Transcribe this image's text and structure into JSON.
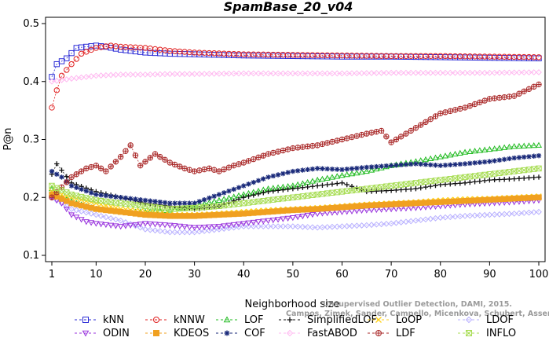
{
  "chart_data": {
    "type": "line",
    "title": "SpamBase_20_v04",
    "xlabel": "Neighborhood size",
    "ylabel": "P@n",
    "xlim": [
      1,
      100
    ],
    "ylim": [
      0.1,
      0.5
    ],
    "xticks": [
      1,
      10,
      20,
      30,
      40,
      50,
      60,
      70,
      80,
      90,
      100
    ],
    "yticks": [
      0.1,
      0.2,
      0.3,
      0.4,
      0.5
    ],
    "grid": false,
    "legend_position": "bottom",
    "credit_lines": [
      "Unsupervised Outlier Detection, DAMI, 2015.",
      "Campos, Zimek, Sander, Campello, Micenkova, Schubert, Assent, Houle"
    ],
    "series": [
      {
        "name": "kNN",
        "color": "#2b2bd6",
        "marker": "square",
        "x": [
          1,
          2,
          4,
          6,
          8,
          10,
          12,
          15,
          20,
          25,
          30,
          40,
          50,
          60,
          70,
          80,
          90,
          100
        ],
        "y": [
          0.408,
          0.43,
          0.44,
          0.458,
          0.46,
          0.462,
          0.46,
          0.455,
          0.45,
          0.448,
          0.447,
          0.445,
          0.444,
          0.443,
          0.443,
          0.442,
          0.441,
          0.44
        ]
      },
      {
        "name": "kNNW",
        "color": "#e02020",
        "marker": "circle",
        "x": [
          1,
          2,
          3,
          5,
          7,
          10,
          13,
          15,
          20,
          25,
          30,
          40,
          50,
          60,
          70,
          80,
          90,
          100
        ],
        "y": [
          0.355,
          0.385,
          0.41,
          0.43,
          0.448,
          0.458,
          0.462,
          0.46,
          0.458,
          0.453,
          0.45,
          0.447,
          0.446,
          0.445,
          0.444,
          0.444,
          0.443,
          0.442
        ]
      },
      {
        "name": "LOF",
        "color": "#22bb22",
        "marker": "triangle-up",
        "x": [
          1,
          3,
          6,
          10,
          15,
          20,
          25,
          30,
          35,
          40,
          45,
          50,
          55,
          60,
          65,
          70,
          75,
          80,
          85,
          90,
          95,
          100
        ],
        "y": [
          0.215,
          0.2,
          0.19,
          0.18,
          0.175,
          0.175,
          0.178,
          0.185,
          0.195,
          0.205,
          0.215,
          0.22,
          0.23,
          0.238,
          0.245,
          0.255,
          0.262,
          0.27,
          0.278,
          0.283,
          0.288,
          0.29
        ]
      },
      {
        "name": "SimplifiedLOF",
        "color": "#111111",
        "marker": "plus",
        "x": [
          1,
          2,
          5,
          10,
          15,
          20,
          25,
          30,
          35,
          40,
          45,
          50,
          55,
          60,
          65,
          70,
          75,
          80,
          85,
          90,
          95,
          100
        ],
        "y": [
          0.24,
          0.258,
          0.225,
          0.21,
          0.2,
          0.19,
          0.185,
          0.18,
          0.185,
          0.2,
          0.21,
          0.215,
          0.22,
          0.225,
          0.21,
          0.212,
          0.215,
          0.222,
          0.225,
          0.23,
          0.232,
          0.235
        ]
      },
      {
        "name": "LoOP",
        "color": "#ffd21a",
        "marker": "x",
        "x": [
          1,
          5,
          10,
          15,
          20,
          25,
          30,
          35,
          40,
          45,
          50,
          55,
          60,
          65,
          70,
          75,
          80,
          85,
          90,
          95,
          100
        ],
        "y": [
          0.21,
          0.2,
          0.19,
          0.18,
          0.175,
          0.17,
          0.17,
          0.172,
          0.175,
          0.178,
          0.18,
          0.182,
          0.185,
          0.188,
          0.19,
          0.192,
          0.195,
          0.197,
          0.198,
          0.2,
          0.202
        ]
      },
      {
        "name": "LDOF",
        "color": "#b8b0ff",
        "marker": "diamond",
        "x": [
          1,
          5,
          10,
          15,
          20,
          25,
          30,
          35,
          40,
          45,
          50,
          55,
          60,
          65,
          70,
          75,
          80,
          85,
          90,
          95,
          100
        ],
        "y": [
          0.2,
          0.18,
          0.17,
          0.16,
          0.145,
          0.14,
          0.14,
          0.145,
          0.15,
          0.15,
          0.15,
          0.148,
          0.15,
          0.152,
          0.155,
          0.16,
          0.165,
          0.168,
          0.17,
          0.172,
          0.175
        ]
      },
      {
        "name": "ODIN",
        "color": "#9933dd",
        "marker": "triangle-down",
        "x": [
          1,
          3,
          5,
          8,
          10,
          15,
          20,
          25,
          30,
          35,
          40,
          45,
          50,
          55,
          60,
          65,
          70,
          75,
          80,
          85,
          90,
          95,
          100
        ],
        "y": [
          0.2,
          0.19,
          0.17,
          0.158,
          0.155,
          0.15,
          0.155,
          0.152,
          0.148,
          0.15,
          0.155,
          0.16,
          0.165,
          0.172,
          0.175,
          0.178,
          0.18,
          0.182,
          0.185,
          0.188,
          0.19,
          0.192,
          0.195
        ]
      },
      {
        "name": "KDEOS",
        "color": "#f0a020",
        "marker": "filled-square",
        "x": [
          1,
          5,
          10,
          15,
          20,
          25,
          30,
          35,
          40,
          45,
          50,
          55,
          60,
          65,
          70,
          75,
          80,
          85,
          90,
          95,
          100
        ],
        "y": [
          0.205,
          0.19,
          0.18,
          0.175,
          0.17,
          0.168,
          0.168,
          0.17,
          0.172,
          0.175,
          0.178,
          0.18,
          0.183,
          0.186,
          0.188,
          0.19,
          0.192,
          0.194,
          0.196,
          0.198,
          0.2
        ]
      },
      {
        "name": "COF",
        "color": "#1a2a7a",
        "marker": "asterisk",
        "x": [
          1,
          3,
          5,
          10,
          15,
          20,
          25,
          30,
          35,
          40,
          45,
          50,
          55,
          60,
          65,
          70,
          75,
          80,
          85,
          90,
          95,
          100
        ],
        "y": [
          0.245,
          0.235,
          0.22,
          0.205,
          0.2,
          0.195,
          0.19,
          0.19,
          0.205,
          0.22,
          0.235,
          0.245,
          0.25,
          0.248,
          0.252,
          0.255,
          0.258,
          0.255,
          0.258,
          0.262,
          0.268,
          0.272
        ]
      },
      {
        "name": "FastABOD",
        "color": "#ffb8f0",
        "marker": "diamond",
        "x": [
          1,
          5,
          10,
          15,
          20,
          25,
          30,
          40,
          50,
          60,
          70,
          80,
          90,
          100
        ],
        "y": [
          0.4,
          0.405,
          0.41,
          0.412,
          0.412,
          0.413,
          0.413,
          0.414,
          0.414,
          0.414,
          0.415,
          0.415,
          0.415,
          0.416
        ]
      },
      {
        "name": "LDF",
        "color": "#aa2a2a",
        "marker": "circle-plus",
        "x": [
          1,
          5,
          8,
          10,
          12,
          15,
          17,
          19,
          22,
          25,
          28,
          30,
          33,
          35,
          38,
          40,
          45,
          50,
          55,
          60,
          65,
          68,
          70,
          75,
          80,
          85,
          90,
          95,
          100
        ],
        "y": [
          0.2,
          0.235,
          0.25,
          0.255,
          0.245,
          0.27,
          0.29,
          0.255,
          0.275,
          0.26,
          0.25,
          0.245,
          0.25,
          0.245,
          0.255,
          0.26,
          0.275,
          0.285,
          0.29,
          0.3,
          0.31,
          0.315,
          0.295,
          0.32,
          0.345,
          0.355,
          0.37,
          0.375,
          0.395
        ]
      },
      {
        "name": "INFLO",
        "color": "#a8dd55",
        "marker": "square-x",
        "x": [
          1,
          5,
          10,
          15,
          20,
          25,
          30,
          35,
          40,
          45,
          50,
          55,
          60,
          65,
          70,
          75,
          80,
          85,
          90,
          95,
          100
        ],
        "y": [
          0.22,
          0.205,
          0.195,
          0.19,
          0.185,
          0.18,
          0.182,
          0.185,
          0.19,
          0.195,
          0.2,
          0.205,
          0.21,
          0.215,
          0.22,
          0.225,
          0.23,
          0.235,
          0.24,
          0.245,
          0.25
        ]
      }
    ]
  }
}
